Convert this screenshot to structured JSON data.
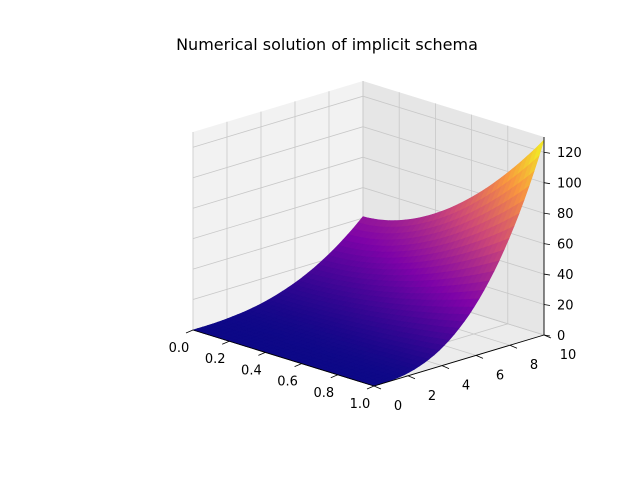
{
  "chart_data": {
    "type": "surface3d",
    "title": "Numerical solution of implicit schema",
    "xlabel": "",
    "ylabel": "",
    "zlabel": "",
    "x_range": [
      0,
      1
    ],
    "y_range": [
      0,
      10
    ],
    "z_range": [
      0,
      130
    ],
    "x_ticks": [
      "0.0",
      "0.2",
      "0.4",
      "0.6",
      "0.8",
      "1.0"
    ],
    "y_ticks": [
      "0",
      "2",
      "4",
      "6",
      "8",
      "10"
    ],
    "z_ticks": [
      "0",
      "20",
      "40",
      "60",
      "80",
      "100",
      "120"
    ],
    "colormap": "plasma",
    "grid": true,
    "surface_corners": [
      {
        "x": 0,
        "y": 0,
        "z": 0
      },
      {
        "x": 1,
        "y": 0,
        "z": 0
      },
      {
        "x": 0,
        "y": 10,
        "z": 41
      },
      {
        "x": 1,
        "y": 10,
        "z": 128
      }
    ]
  }
}
